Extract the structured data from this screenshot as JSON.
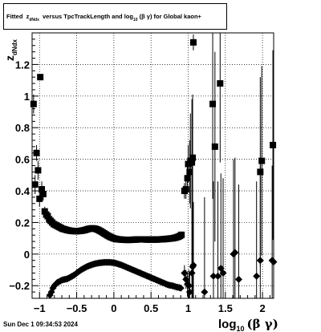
{
  "title": {
    "prefix": "Fitted",
    "z": "z",
    "z_sub": "dNdx",
    "middle": "versus TpcTrackLength and log",
    "log_sub": "10",
    "suffix": "(β γ) for Global kaon+"
  },
  "footer": "Sun Dec  1 09:34:53 2024",
  "chart_data": {
    "type": "scatter",
    "xlabel": "log10(β γ)",
    "xlabel_main": "log",
    "xlabel_sub": "10",
    "xlabel_rest": "(β γ)",
    "ylabel": "zdNdx",
    "ylabel_main": "z",
    "ylabel_sub": "dNdx",
    "xlim": [
      -1.1,
      2.15
    ],
    "ylim": [
      -0.28,
      1.4
    ],
    "xticks": [
      -1,
      -0.5,
      0,
      0.5,
      1,
      1.5,
      2
    ],
    "xtick_labels": [
      "−1",
      "−0.5",
      "0",
      "0.5",
      "1",
      "1.5",
      "2"
    ],
    "yticks": [
      -0.2,
      0,
      0.2,
      0.4,
      0.6,
      0.8,
      1,
      1.2
    ],
    "ytick_labels": [
      "−0.2",
      "0",
      "0.2",
      "0.4",
      "0.6",
      "0.8",
      "1",
      "1.2"
    ],
    "grid": true,
    "series": [
      {
        "marker": "square",
        "points": [
          [
            -1.08,
            0.95,
            0.06
          ],
          [
            -1.06,
            0.44,
            0.06
          ],
          [
            -1.04,
            0.64,
            0.05
          ],
          [
            -1.02,
            0.53,
            0.06
          ],
          [
            -1.0,
            0.35,
            0.05
          ],
          [
            -0.99,
            1.12,
            0.02
          ],
          [
            -0.97,
            0.41,
            0.05
          ],
          [
            -0.95,
            0.38,
            0.04
          ],
          [
            -0.93,
            0.27,
            0.03
          ],
          [
            -0.91,
            0.25,
            0.02
          ],
          [
            -0.89,
            0.24,
            0.02
          ],
          [
            -0.87,
            0.22,
            0.02
          ],
          [
            -0.85,
            0.21,
            0.015
          ],
          [
            -0.83,
            0.2,
            0.01
          ],
          [
            -0.81,
            0.19,
            0.01
          ],
          [
            -0.79,
            0.185,
            0.01
          ],
          [
            -0.77,
            0.18,
            0.01
          ],
          [
            -0.75,
            0.175,
            0.005
          ],
          [
            -0.73,
            0.17,
            0.005
          ],
          [
            -0.71,
            0.165,
            0.005
          ],
          [
            -0.69,
            0.16,
            0.005
          ],
          [
            -0.67,
            0.158,
            0.005
          ],
          [
            -0.65,
            0.155,
            0.005
          ],
          [
            -0.63,
            0.152,
            0.005
          ],
          [
            -0.61,
            0.15,
            0.005
          ],
          [
            -0.59,
            0.148,
            0.005
          ],
          [
            -0.57,
            0.147,
            0.005
          ],
          [
            -0.55,
            0.146,
            0.005
          ],
          [
            -0.53,
            0.145,
            0.005
          ],
          [
            -0.51,
            0.145,
            0.005
          ],
          [
            -0.49,
            0.145,
            0.005
          ],
          [
            -0.47,
            0.146,
            0.005
          ],
          [
            -0.45,
            0.147,
            0.005
          ],
          [
            -0.43,
            0.148,
            0.005
          ],
          [
            -0.41,
            0.15,
            0.005
          ],
          [
            -0.39,
            0.152,
            0.005
          ],
          [
            -0.37,
            0.155,
            0.005
          ],
          [
            -0.35,
            0.158,
            0.005
          ],
          [
            -0.33,
            0.16,
            0.005
          ],
          [
            -0.31,
            0.162,
            0.005
          ],
          [
            -0.29,
            0.163,
            0.005
          ],
          [
            -0.27,
            0.162,
            0.005
          ],
          [
            -0.25,
            0.16,
            0.005
          ],
          [
            -0.23,
            0.157,
            0.005
          ],
          [
            -0.21,
            0.153,
            0.005
          ],
          [
            -0.19,
            0.148,
            0.005
          ],
          [
            -0.17,
            0.143,
            0.005
          ],
          [
            -0.15,
            0.137,
            0.005
          ],
          [
            -0.13,
            0.131,
            0.005
          ],
          [
            -0.11,
            0.125,
            0.005
          ],
          [
            -0.09,
            0.119,
            0.005
          ],
          [
            -0.07,
            0.114,
            0.005
          ],
          [
            -0.05,
            0.109,
            0.005
          ],
          [
            -0.03,
            0.105,
            0.005
          ],
          [
            -0.01,
            0.101,
            0.005
          ],
          [
            0.01,
            0.098,
            0.005
          ],
          [
            0.03,
            0.096,
            0.005
          ],
          [
            0.05,
            0.094,
            0.005
          ],
          [
            0.07,
            0.093,
            0.005
          ],
          [
            0.09,
            0.092,
            0.005
          ],
          [
            0.11,
            0.091,
            0.005
          ],
          [
            0.13,
            0.091,
            0.005
          ],
          [
            0.15,
            0.09,
            0.005
          ],
          [
            0.17,
            0.09,
            0.005
          ],
          [
            0.19,
            0.09,
            0.005
          ],
          [
            0.21,
            0.09,
            0.005
          ],
          [
            0.23,
            0.09,
            0.005
          ],
          [
            0.25,
            0.091,
            0.005
          ],
          [
            0.27,
            0.091,
            0.005
          ],
          [
            0.29,
            0.092,
            0.005
          ],
          [
            0.31,
            0.092,
            0.005
          ],
          [
            0.33,
            0.093,
            0.005
          ],
          [
            0.35,
            0.093,
            0.005
          ],
          [
            0.37,
            0.093,
            0.005
          ],
          [
            0.39,
            0.093,
            0.005
          ],
          [
            0.41,
            0.093,
            0.005
          ],
          [
            0.43,
            0.092,
            0.005
          ],
          [
            0.45,
            0.092,
            0.005
          ],
          [
            0.47,
            0.092,
            0.005
          ],
          [
            0.49,
            0.092,
            0.005
          ],
          [
            0.51,
            0.092,
            0.005
          ],
          [
            0.53,
            0.092,
            0.005
          ],
          [
            0.55,
            0.092,
            0.005
          ],
          [
            0.57,
            0.092,
            0.005
          ],
          [
            0.59,
            0.092,
            0.005
          ],
          [
            0.61,
            0.093,
            0.005
          ],
          [
            0.63,
            0.093,
            0.005
          ],
          [
            0.65,
            0.094,
            0.005
          ],
          [
            0.67,
            0.094,
            0.005
          ],
          [
            0.69,
            0.095,
            0.005
          ],
          [
            0.71,
            0.096,
            0.005
          ],
          [
            0.73,
            0.097,
            0.005
          ],
          [
            0.75,
            0.098,
            0.005
          ],
          [
            0.77,
            0.099,
            0.01
          ],
          [
            0.79,
            0.1,
            0.01
          ],
          [
            0.81,
            0.102,
            0.01
          ],
          [
            0.83,
            0.104,
            0.01
          ],
          [
            0.85,
            0.107,
            0.01
          ],
          [
            0.87,
            0.11,
            0.01
          ],
          [
            0.89,
            0.115,
            0.015
          ],
          [
            0.91,
            0.122,
            0.02
          ],
          [
            0.95,
            0.4,
            0.05
          ],
          [
            0.97,
            0.41,
            0.06
          ],
          [
            0.99,
            0.48,
            0.1
          ],
          [
            1.0,
            0.57,
            0.12
          ],
          [
            1.02,
            0.52,
            0.2
          ],
          [
            1.03,
            0.59,
            0.3
          ],
          [
            1.05,
            0.58,
            0.4
          ],
          [
            1.06,
            0.61,
            0.4
          ],
          [
            1.07,
            1.34,
            0.05
          ],
          [
            1.33,
            0.95,
            0.6
          ],
          [
            1.36,
            0.68,
            0.6
          ],
          [
            1.43,
            1.08,
            0.5
          ],
          [
            1.97,
            0.52,
            0.6
          ],
          [
            1.99,
            0.59,
            0.6
          ],
          [
            2.14,
            0.69,
            0.6
          ]
        ]
      },
      {
        "marker": "diamond",
        "points": [
          [
            -0.86,
            -0.26,
            0.02
          ],
          [
            -0.84,
            -0.24,
            0.015
          ],
          [
            -0.82,
            -0.215,
            0.01
          ],
          [
            -0.8,
            -0.2,
            0.01
          ],
          [
            -0.78,
            -0.19,
            0.01
          ],
          [
            -0.76,
            -0.18,
            0.005
          ],
          [
            -0.74,
            -0.175,
            0.005
          ],
          [
            -0.72,
            -0.17,
            0.005
          ],
          [
            -0.7,
            -0.165,
            0.005
          ],
          [
            -0.68,
            -0.162,
            0.005
          ],
          [
            -0.66,
            -0.16,
            0.005
          ],
          [
            -0.64,
            -0.158,
            0.005
          ],
          [
            -0.62,
            -0.155,
            0.005
          ],
          [
            -0.6,
            -0.15,
            0.005
          ],
          [
            -0.58,
            -0.145,
            0.005
          ],
          [
            -0.56,
            -0.14,
            0.005
          ],
          [
            -0.54,
            -0.134,
            0.005
          ],
          [
            -0.52,
            -0.128,
            0.005
          ],
          [
            -0.5,
            -0.12,
            0.005
          ],
          [
            -0.48,
            -0.113,
            0.005
          ],
          [
            -0.46,
            -0.106,
            0.005
          ],
          [
            -0.44,
            -0.1,
            0.005
          ],
          [
            -0.42,
            -0.094,
            0.005
          ],
          [
            -0.4,
            -0.089,
            0.005
          ],
          [
            -0.38,
            -0.084,
            0.005
          ],
          [
            -0.36,
            -0.079,
            0.005
          ],
          [
            -0.34,
            -0.075,
            0.005
          ],
          [
            -0.32,
            -0.071,
            0.005
          ],
          [
            -0.3,
            -0.068,
            0.005
          ],
          [
            -0.28,
            -0.065,
            0.005
          ],
          [
            -0.26,
            -0.062,
            0.005
          ],
          [
            -0.24,
            -0.06,
            0.005
          ],
          [
            -0.22,
            -0.058,
            0.005
          ],
          [
            -0.2,
            -0.056,
            0.005
          ],
          [
            -0.18,
            -0.055,
            0.005
          ],
          [
            -0.16,
            -0.054,
            0.005
          ],
          [
            -0.14,
            -0.053,
            0.005
          ],
          [
            -0.12,
            -0.052,
            0.005
          ],
          [
            -0.1,
            -0.052,
            0.005
          ],
          [
            -0.08,
            -0.052,
            0.005
          ],
          [
            -0.06,
            -0.052,
            0.005
          ],
          [
            -0.04,
            -0.053,
            0.005
          ],
          [
            -0.02,
            -0.054,
            0.005
          ],
          [
            0.0,
            -0.055,
            0.005
          ],
          [
            0.02,
            -0.057,
            0.005
          ],
          [
            0.04,
            -0.06,
            0.005
          ],
          [
            0.06,
            -0.063,
            0.005
          ],
          [
            0.08,
            -0.066,
            0.005
          ],
          [
            0.1,
            -0.069,
            0.005
          ],
          [
            0.12,
            -0.073,
            0.005
          ],
          [
            0.14,
            -0.077,
            0.005
          ],
          [
            0.16,
            -0.081,
            0.005
          ],
          [
            0.18,
            -0.085,
            0.005
          ],
          [
            0.2,
            -0.089,
            0.005
          ],
          [
            0.22,
            -0.093,
            0.005
          ],
          [
            0.24,
            -0.097,
            0.005
          ],
          [
            0.26,
            -0.101,
            0.005
          ],
          [
            0.28,
            -0.105,
            0.005
          ],
          [
            0.3,
            -0.109,
            0.005
          ],
          [
            0.32,
            -0.113,
            0.005
          ],
          [
            0.34,
            -0.117,
            0.005
          ],
          [
            0.36,
            -0.121,
            0.005
          ],
          [
            0.38,
            -0.125,
            0.005
          ],
          [
            0.4,
            -0.129,
            0.005
          ],
          [
            0.42,
            -0.133,
            0.005
          ],
          [
            0.44,
            -0.137,
            0.005
          ],
          [
            0.46,
            -0.141,
            0.005
          ],
          [
            0.48,
            -0.145,
            0.005
          ],
          [
            0.5,
            -0.149,
            0.005
          ],
          [
            0.52,
            -0.153,
            0.005
          ],
          [
            0.54,
            -0.157,
            0.005
          ],
          [
            0.56,
            -0.161,
            0.005
          ],
          [
            0.58,
            -0.165,
            0.005
          ],
          [
            0.6,
            -0.169,
            0.005
          ],
          [
            0.62,
            -0.173,
            0.005
          ],
          [
            0.64,
            -0.177,
            0.005
          ],
          [
            0.66,
            -0.181,
            0.005
          ],
          [
            0.68,
            -0.185,
            0.005
          ],
          [
            0.7,
            -0.189,
            0.005
          ],
          [
            0.72,
            -0.193,
            0.005
          ],
          [
            0.74,
            -0.196,
            0.005
          ],
          [
            0.76,
            -0.198,
            0.01
          ],
          [
            0.78,
            -0.2,
            0.01
          ],
          [
            0.8,
            -0.202,
            0.01
          ],
          [
            0.82,
            -0.205,
            0.01
          ],
          [
            0.84,
            -0.208,
            0.01
          ],
          [
            0.86,
            -0.21,
            0.015
          ],
          [
            0.88,
            -0.212,
            0.015
          ],
          [
            0.9,
            -0.215,
            0.02
          ],
          [
            0.95,
            -0.12,
            0.05
          ],
          [
            0.97,
            -0.16,
            0.06
          ],
          [
            0.99,
            -0.19,
            0.08
          ],
          [
            1.01,
            -0.2,
            0.1
          ],
          [
            1.02,
            -0.24,
            0.12
          ],
          [
            1.05,
            -0.12,
            0.3
          ],
          [
            1.06,
            -0.08,
            0.4
          ],
          [
            1.07,
            -0.07,
            0.4
          ],
          [
            1.22,
            -0.24,
            0.6
          ],
          [
            1.34,
            -0.14,
            0.6
          ],
          [
            1.4,
            -0.14,
            0.6
          ],
          [
            1.44,
            -0.09,
            0.6
          ],
          [
            1.47,
            -0.12,
            0.6
          ],
          [
            1.61,
            0.0,
            0.6
          ],
          [
            1.63,
            0.01,
            0.6
          ],
          [
            1.68,
            -0.16,
            0.6
          ],
          [
            1.92,
            -0.14,
            0.6
          ],
          [
            1.97,
            -0.04,
            0.6
          ],
          [
            2.13,
            -0.04,
            0.6
          ],
          [
            2.15,
            -0.05,
            0.6
          ]
        ]
      }
    ]
  }
}
